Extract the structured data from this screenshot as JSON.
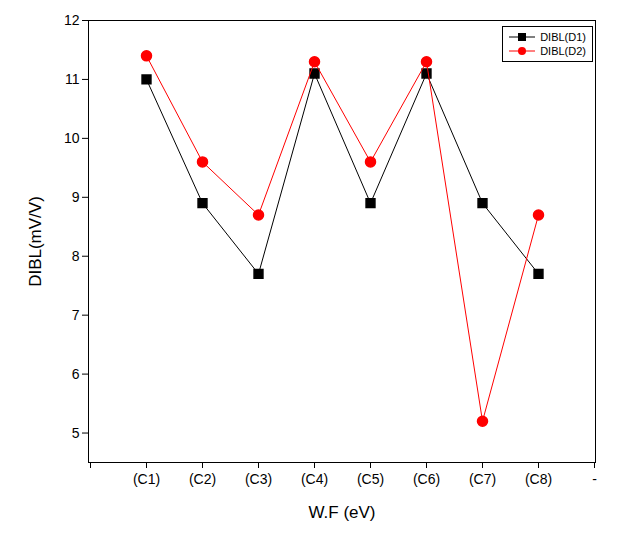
{
  "chart_data": {
    "type": "line",
    "x_label": "W.F (eV)",
    "y_label": "DIBL(mV/V)",
    "categories": [
      null,
      "(C1)",
      "(C2)",
      "(C3)",
      "(C4)",
      "(C5)",
      "(C6)",
      "(C7)",
      "(C8)",
      "-"
    ],
    "series": [
      {
        "name": "DIBL(D1)",
        "color": "#000000",
        "marker": "square",
        "values": [
          null,
          11.0,
          8.9,
          7.7,
          11.1,
          8.9,
          11.1,
          8.9,
          7.7,
          null
        ]
      },
      {
        "name": "DIBL(D2)",
        "color": "#ff0000",
        "marker": "circle",
        "values": [
          null,
          11.4,
          9.6,
          8.7,
          11.3,
          9.6,
          11.3,
          5.2,
          8.7,
          null
        ]
      }
    ],
    "ylim": [
      4.5,
      12
    ],
    "yticks": [
      5,
      6,
      7,
      8,
      9,
      10,
      11,
      12
    ],
    "legend": "top-right"
  }
}
